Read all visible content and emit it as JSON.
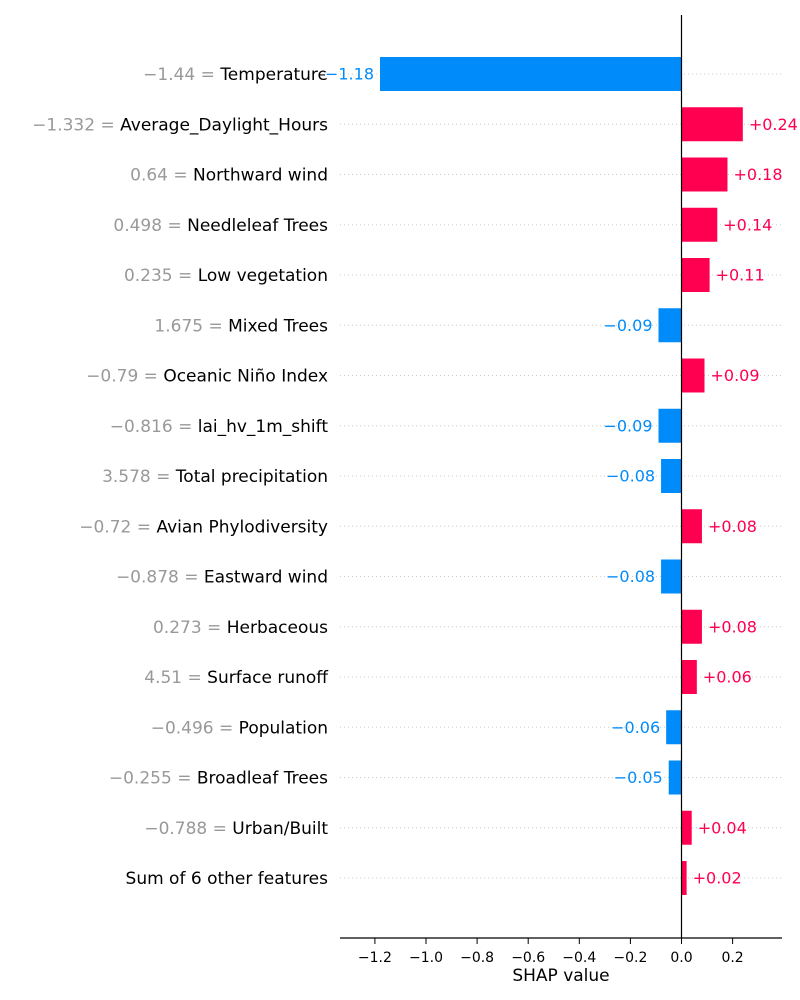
{
  "chart_data": {
    "type": "bar",
    "orientation": "horizontal",
    "xlabel": "SHAP value",
    "xlim": [
      -1.33,
      0.39
    ],
    "xticks": [
      -1.2,
      -1.0,
      -0.8,
      -0.6,
      -0.4,
      -0.2,
      0.0,
      0.2
    ],
    "xtick_labels": [
      "−1.2",
      "−1.0",
      "−0.8",
      "−0.6",
      "−0.4",
      "−0.2",
      "0.0",
      "0.2"
    ],
    "grid": "dotted horizontal guides per row",
    "colors": {
      "positive": "#ff0051",
      "negative": "#008bfb",
      "feature_value": "#999999",
      "feature_name": "#000000"
    },
    "features": [
      {
        "value_text": "−1.44 =",
        "name": "Temperature",
        "shap": -1.18,
        "label": "−1.18"
      },
      {
        "value_text": "−1.332 =",
        "name": "Average_Daylight_Hours",
        "shap": 0.24,
        "label": "+0.24"
      },
      {
        "value_text": "0.64 =",
        "name": "Northward wind",
        "shap": 0.18,
        "label": "+0.18"
      },
      {
        "value_text": "0.498 =",
        "name": "Needleleaf Trees",
        "shap": 0.14,
        "label": "+0.14"
      },
      {
        "value_text": "0.235 =",
        "name": "Low vegetation",
        "shap": 0.11,
        "label": "+0.11"
      },
      {
        "value_text": "1.675 =",
        "name": "Mixed Trees",
        "shap": -0.09,
        "label": "−0.09"
      },
      {
        "value_text": "−0.79 =",
        "name": "Oceanic Niño Index",
        "shap": 0.09,
        "label": "+0.09"
      },
      {
        "value_text": "−0.816 =",
        "name": "lai_hv_1m_shift",
        "shap": -0.09,
        "label": "−0.09"
      },
      {
        "value_text": "3.578 =",
        "name": "Total precipitation",
        "shap": -0.08,
        "label": "−0.08"
      },
      {
        "value_text": "−0.72 =",
        "name": "Avian Phylodiversity",
        "shap": 0.08,
        "label": "+0.08"
      },
      {
        "value_text": "−0.878 =",
        "name": "Eastward wind",
        "shap": -0.08,
        "label": "−0.08"
      },
      {
        "value_text": "0.273 =",
        "name": "Herbaceous",
        "shap": 0.08,
        "label": "+0.08"
      },
      {
        "value_text": "4.51 =",
        "name": "Surface runoff",
        "shap": 0.06,
        "label": "+0.06"
      },
      {
        "value_text": "−0.496 =",
        "name": "Population",
        "shap": -0.06,
        "label": "−0.06"
      },
      {
        "value_text": "−0.255 =",
        "name": "Broadleaf Trees",
        "shap": -0.05,
        "label": "−0.05"
      },
      {
        "value_text": "−0.788 =",
        "name": "Urban/Built",
        "shap": 0.04,
        "label": "+0.04"
      },
      {
        "value_text": "",
        "name": "Sum of 6 other features",
        "shap": 0.02,
        "label": "+0.02"
      }
    ]
  }
}
